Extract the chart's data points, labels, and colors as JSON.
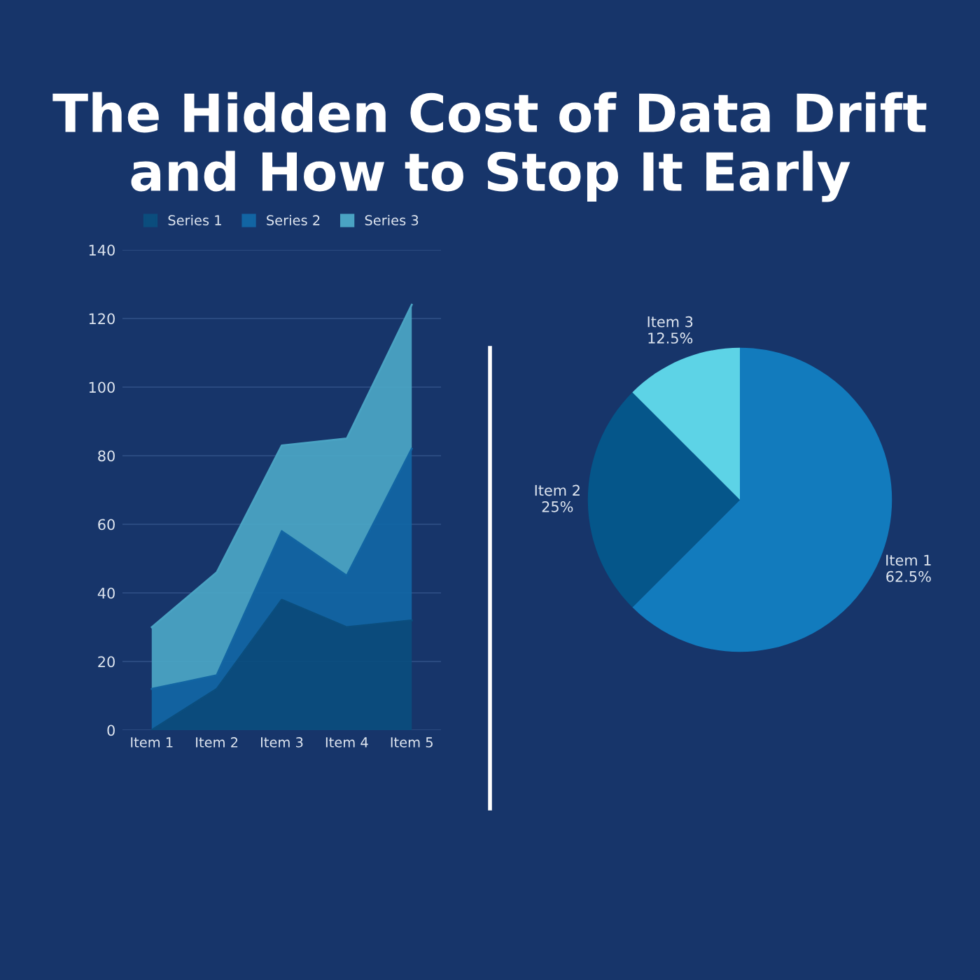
{
  "chart_data": [
    {
      "type": "area",
      "title": "The Hidden Cost of Data Drift and How to Stop It Early",
      "stacked": true,
      "categories": [
        "Item 1",
        "Item 2",
        "Item 3",
        "Item 4",
        "Item 5"
      ],
      "series": [
        {
          "name": "Series 1",
          "color": "#0b4d7d",
          "values": [
            0,
            12,
            38,
            30,
            32
          ]
        },
        {
          "name": "Series 2",
          "color": "#1265a3",
          "values": [
            12,
            4,
            20,
            15,
            50
          ]
        },
        {
          "name": "Series 3",
          "color": "#4aa3c3",
          "values": [
            18,
            30,
            25,
            40,
            42
          ]
        }
      ],
      "ylim": [
        0,
        140
      ],
      "yticks": [
        0,
        20,
        40,
        60,
        80,
        100,
        120,
        140
      ],
      "grid": "y",
      "legend": "top"
    },
    {
      "type": "pie",
      "categories": [
        "Item 1",
        "Item 2",
        "Item 3"
      ],
      "values": [
        62.5,
        25,
        12.5
      ],
      "colors": [
        "#127bbd",
        "#05568a",
        "#5dd3e6"
      ],
      "value_labels": [
        "62.5%",
        "25%",
        "12.5%"
      ]
    }
  ]
}
